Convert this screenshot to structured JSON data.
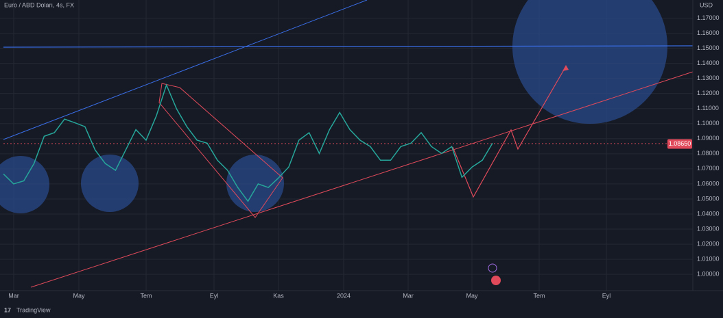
{
  "chart_data": {
    "type": "line",
    "title": "Euro / ABD Doları, 4s, FX",
    "y_axis_label": "USD",
    "watermark": "TradingView",
    "color": "#26a69a",
    "values": [
      1.0666,
      1.06,
      1.062,
      1.0735,
      1.0916,
      1.094,
      1.103,
      1.1006,
      1.098,
      1.0825,
      1.0735,
      1.069,
      1.0825,
      1.096,
      1.089,
      1.105,
      1.1256,
      1.1097,
      1.098,
      1.089,
      1.087,
      1.0757,
      1.069,
      1.0576,
      1.0485,
      1.06,
      1.0576,
      1.064,
      1.0712,
      1.089,
      1.094,
      1.0802,
      1.096,
      1.1074,
      1.096,
      1.089,
      1.0848,
      1.0757,
      1.0757,
      1.0848,
      1.087,
      1.094,
      1.0848,
      1.0802,
      1.0848,
      1.0644,
      1.0712,
      1.0757,
      1.087
    ],
    "x_tick_labels": [
      "Mar",
      "May",
      "Tem",
      "Eyl",
      "Kas",
      "2024",
      "Mar",
      "May",
      "Tem",
      "Eyl"
    ],
    "ylim": [
      0.991,
      1.182
    ],
    "yticks": [
      {
        "value": 1.0,
        "label": "1.00000"
      },
      {
        "value": 1.01,
        "label": "1.01000"
      },
      {
        "value": 1.02,
        "label": "1.02000"
      },
      {
        "value": 1.03,
        "label": "1.03000"
      },
      {
        "value": 1.04,
        "label": "1.04000"
      },
      {
        "value": 1.05,
        "label": "1.05000"
      },
      {
        "value": 1.06,
        "label": "1.06000"
      },
      {
        "value": 1.07,
        "label": "1.07000"
      },
      {
        "value": 1.08,
        "label": "1.08000"
      },
      {
        "value": 1.09,
        "label": "1.09000"
      },
      {
        "value": 1.1,
        "label": "1.10000"
      },
      {
        "value": 1.11,
        "label": "1.11000"
      },
      {
        "value": 1.12,
        "label": "1.12000"
      },
      {
        "value": 1.13,
        "label": "1.13000"
      },
      {
        "value": 1.14,
        "label": "1.14000"
      },
      {
        "value": 1.15,
        "label": "1.15000"
      },
      {
        "value": 1.16,
        "label": "1.16000"
      },
      {
        "value": 1.17,
        "label": "1.17000"
      }
    ],
    "last_price": {
      "value": 1.0865,
      "label": "1.08650"
    },
    "grid": true
  }
}
